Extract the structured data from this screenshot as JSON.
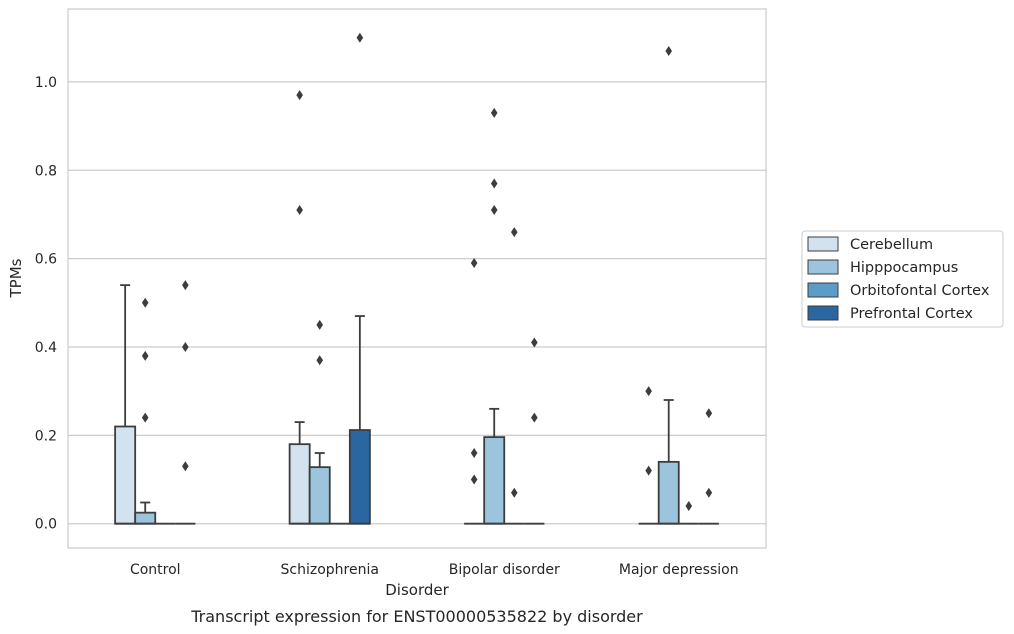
{
  "chart_data": {
    "type": "box",
    "caption": "Transcript expression for ENST00000535822 by disorder",
    "xlabel": "Disorder",
    "ylabel": "TPMs",
    "ylim": [
      -0.055,
      1.165
    ],
    "yticks": [
      0.0,
      0.2,
      0.4,
      0.6,
      0.8,
      1.0
    ],
    "ytick_labels": [
      "0.0",
      "0.2",
      "0.4",
      "0.6",
      "0.8",
      "1.0"
    ],
    "grid": "horizontal",
    "legend_position": "right",
    "categories": [
      "Control",
      "Schizophrenia",
      "Bipolar disorder",
      "Major depression"
    ],
    "series": [
      {
        "name": "Cerebellum",
        "color": "#d2e2ef",
        "boxes": [
          {
            "q1": 0.0,
            "median": 0.0,
            "q3": 0.22,
            "whisker_low": 0.0,
            "whisker_high": 0.54,
            "outliers": []
          },
          {
            "q1": 0.0,
            "median": 0.0,
            "q3": 0.18,
            "whisker_low": 0.0,
            "whisker_high": 0.23,
            "outliers": [
              0.71,
              0.97
            ]
          },
          {
            "q1": 0.0,
            "median": 0.0,
            "q3": 0.0,
            "whisker_low": 0.0,
            "whisker_high": 0.0,
            "outliers": [
              0.1,
              0.16,
              0.59
            ]
          },
          {
            "q1": 0.0,
            "median": 0.0,
            "q3": 0.0,
            "whisker_low": 0.0,
            "whisker_high": 0.0,
            "outliers": [
              0.12,
              0.3
            ]
          }
        ]
      },
      {
        "name": "Hipppocampus",
        "color": "#9cc4dd",
        "boxes": [
          {
            "q1": 0.0,
            "median": 0.0,
            "q3": 0.025,
            "whisker_low": 0.0,
            "whisker_high": 0.048,
            "outliers": [
              0.24,
              0.38,
              0.5
            ]
          },
          {
            "q1": 0.0,
            "median": 0.0,
            "q3": 0.128,
            "whisker_low": 0.0,
            "whisker_high": 0.16,
            "outliers": [
              0.37,
              0.45
            ]
          },
          {
            "q1": 0.0,
            "median": 0.0,
            "q3": 0.196,
            "whisker_low": 0.0,
            "whisker_high": 0.26,
            "outliers": [
              0.71,
              0.77,
              0.93
            ]
          },
          {
            "q1": 0.0,
            "median": 0.0,
            "q3": 0.14,
            "whisker_low": 0.0,
            "whisker_high": 0.28,
            "outliers": [
              1.07
            ]
          }
        ]
      },
      {
        "name": "Orbitofontal Cortex",
        "color": "#5b9cc9",
        "boxes": [
          {
            "q1": 0.0,
            "median": 0.0,
            "q3": 0.0,
            "whisker_low": 0.0,
            "whisker_high": 0.0,
            "outliers": []
          },
          {
            "q1": 0.0,
            "median": 0.0,
            "q3": 0.0,
            "whisker_low": 0.0,
            "whisker_high": 0.0,
            "outliers": []
          },
          {
            "q1": 0.0,
            "median": 0.0,
            "q3": 0.0,
            "whisker_low": 0.0,
            "whisker_high": 0.0,
            "outliers": [
              0.07,
              0.66
            ]
          },
          {
            "q1": 0.0,
            "median": 0.0,
            "q3": 0.0,
            "whisker_low": 0.0,
            "whisker_high": 0.0,
            "outliers": [
              0.04
            ]
          }
        ]
      },
      {
        "name": "Prefrontal Cortex",
        "color": "#2a66a0",
        "boxes": [
          {
            "q1": 0.0,
            "median": 0.0,
            "q3": 0.0,
            "whisker_low": 0.0,
            "whisker_high": 0.0,
            "outliers": [
              0.13,
              0.4,
              0.54
            ]
          },
          {
            "q1": 0.0,
            "median": 0.0,
            "q3": 0.212,
            "whisker_low": 0.0,
            "whisker_high": 0.47,
            "outliers": [
              1.1
            ]
          },
          {
            "q1": 0.0,
            "median": 0.0,
            "q3": 0.0,
            "whisker_low": 0.0,
            "whisker_high": 0.0,
            "outliers": [
              0.24,
              0.41
            ]
          },
          {
            "q1": 0.0,
            "median": 0.0,
            "q3": 0.0,
            "whisker_low": 0.0,
            "whisker_high": 0.0,
            "outliers": [
              0.07,
              0.25
            ]
          }
        ]
      }
    ]
  }
}
